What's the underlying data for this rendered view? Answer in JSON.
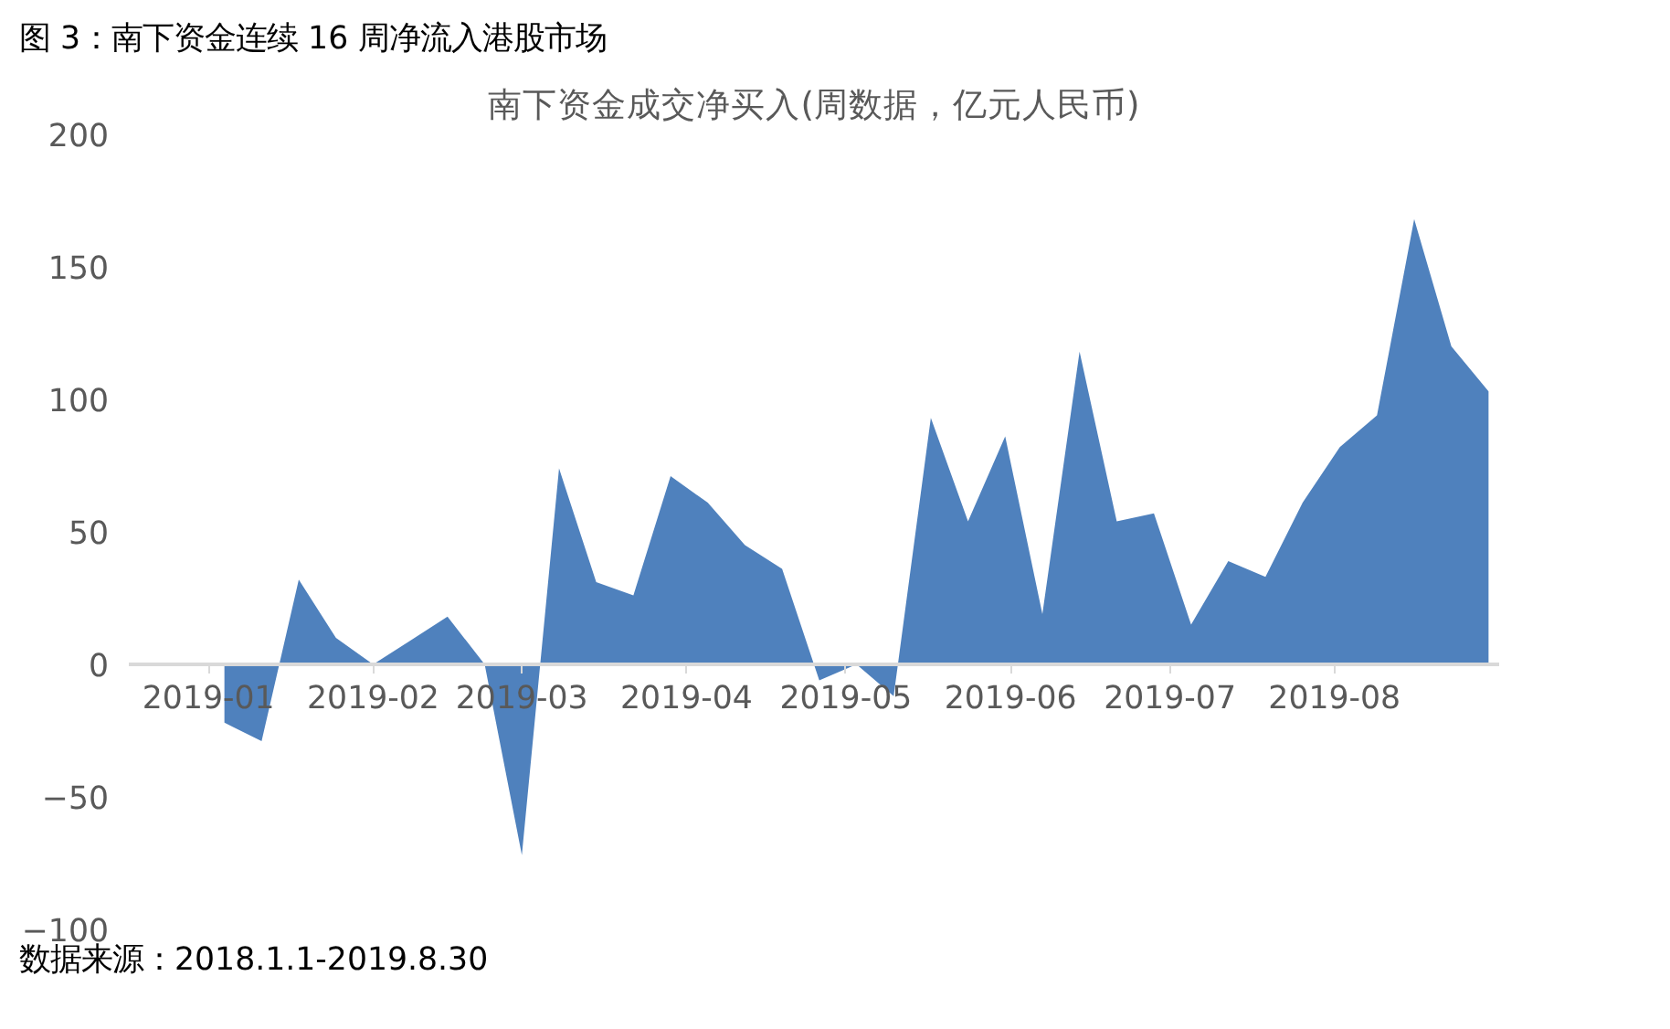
{
  "chart_data": {
    "type": "area",
    "title": "图 3：南下资金连续 16 周净流入港股市场",
    "subtitle": "南下资金成交净买入(周数据，亿元人民币)",
    "annotations": [
      "数据来源：2018.1.1-2019.8.30"
    ],
    "x": [
      "2019-01-04",
      "2019-01-11",
      "2019-01-18",
      "2019-01-25",
      "2019-02-01",
      "2019-02-08",
      "2019-02-15",
      "2019-02-22",
      "2019-03-01",
      "2019-03-08",
      "2019-03-15",
      "2019-03-22",
      "2019-03-29",
      "2019-04-05",
      "2019-04-12",
      "2019-04-19",
      "2019-04-26",
      "2019-05-03",
      "2019-05-10",
      "2019-05-17",
      "2019-05-24",
      "2019-05-31",
      "2019-06-07",
      "2019-06-14",
      "2019-06-21",
      "2019-06-28",
      "2019-07-05",
      "2019-07-12",
      "2019-07-19",
      "2019-07-26",
      "2019-08-02",
      "2019-08-09",
      "2019-08-16",
      "2019-08-23",
      "2019-08-30"
    ],
    "series": [
      {
        "color": "#4f81bd",
        "values": [
          -22,
          -29,
          32,
          10,
          0,
          9,
          18,
          0,
          -72,
          74,
          31,
          26,
          71,
          61,
          45,
          36,
          -6,
          0,
          -12,
          93,
          54,
          86,
          19,
          118,
          54,
          57,
          15,
          39,
          33,
          61,
          82,
          94,
          168,
          120,
          103
        ]
      }
    ],
    "xlim": [
      "2018-12-17",
      "2019-09-01"
    ],
    "xticks": [
      {
        "value": "2019-01-01",
        "label": "2019-01"
      },
      {
        "value": "2019-02-01",
        "label": "2019-02"
      },
      {
        "value": "2019-03-01",
        "label": "2019-03"
      },
      {
        "value": "2019-04-01",
        "label": "2019-04"
      },
      {
        "value": "2019-05-01",
        "label": "2019-05"
      },
      {
        "value": "2019-06-01",
        "label": "2019-06"
      },
      {
        "value": "2019-07-01",
        "label": "2019-07"
      },
      {
        "value": "2019-08-01",
        "label": "2019-08"
      }
    ],
    "ylim": [
      -100,
      200
    ],
    "yticks": [
      -100,
      -50,
      0,
      50,
      100,
      150,
      200
    ],
    "grid": false
  }
}
